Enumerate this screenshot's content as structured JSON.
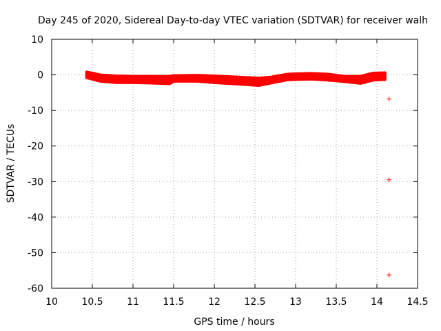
{
  "chart_data": {
    "type": "scatter",
    "title": "Day 245 of 2020, Sidereal Day-to-day VTEC variation (SDTVAR) for receiver walh",
    "xlabel": "GPS time / hours",
    "ylabel": "SDTVAR / TECUs",
    "xlim": [
      10,
      14.5
    ],
    "ylim": [
      -60,
      10
    ],
    "xticks": [
      "10",
      "10.5",
      "11",
      "11.5",
      "12",
      "12.5",
      "13",
      "13.5",
      "14",
      "14.5"
    ],
    "yticks": [
      "10",
      "0",
      "-10",
      "-20",
      "-30",
      "-40",
      "-50",
      "-60"
    ],
    "grid": true,
    "marker": "+",
    "color": "#ff0000",
    "band_color": "#ff0000",
    "series": [
      {
        "name": "SDTVAR",
        "band": {
          "x": [
            10.43,
            10.5,
            10.6,
            10.8,
            11.0,
            11.2,
            11.45,
            11.5,
            11.8,
            12.0,
            12.3,
            12.55,
            12.7,
            12.9,
            13.0,
            13.2,
            13.4,
            13.6,
            13.8,
            13.95,
            14.1
          ],
          "upper": [
            0.8,
            0.5,
            0.0,
            -0.3,
            -0.4,
            -0.4,
            -0.4,
            -0.2,
            -0.1,
            -0.3,
            -0.6,
            -0.9,
            -0.6,
            0.2,
            0.3,
            0.4,
            0.2,
            -0.4,
            -0.4,
            0.5,
            0.6
          ],
          "lower": [
            -0.8,
            -1.2,
            -1.8,
            -2.2,
            -2.2,
            -2.3,
            -2.5,
            -1.8,
            -1.8,
            -2.2,
            -2.6,
            -3.0,
            -2.3,
            -1.4,
            -1.3,
            -1.2,
            -1.5,
            -1.9,
            -2.4,
            -1.5,
            -1.3
          ]
        },
        "outliers": [
          {
            "x": 14.15,
            "y": -6.8
          },
          {
            "x": 14.15,
            "y": -29.5
          },
          {
            "x": 14.15,
            "y": -56.3
          }
        ]
      }
    ]
  }
}
